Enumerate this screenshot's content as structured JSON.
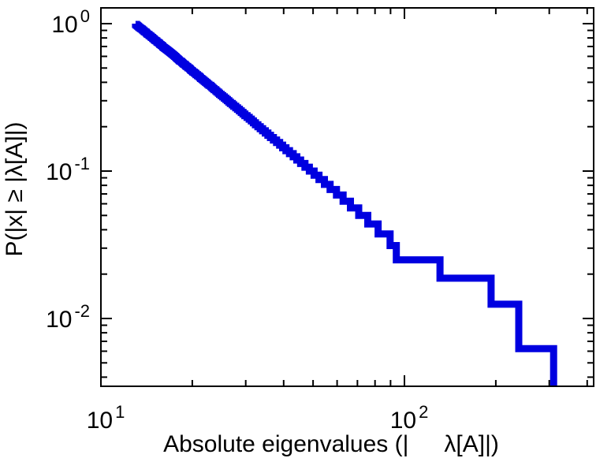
{
  "figure": {
    "background": "#ffffff",
    "frame_color": "#000000"
  },
  "chart_data": {
    "type": "line",
    "subtype": "empirical-ccdf-step",
    "title": "",
    "xlabel": "Absolute eigenvalues (|  λ[A]|)",
    "ylabel": "P(|x| ≥ |λ[A]|)",
    "x_scale": "log",
    "y_scale": "log",
    "xlim": [
      10,
      420
    ],
    "ylim": [
      0.0035,
      1.28
    ],
    "grid": false,
    "legend": "none",
    "line_color": "#0000e0",
    "line_width": 9,
    "n_samples": 160,
    "axes": {
      "x": {
        "major": [
          10,
          100
        ],
        "minor": [
          20,
          30,
          40,
          50,
          60,
          70,
          80,
          90,
          200,
          300,
          400
        ],
        "tick_labels": [
          {
            "base": "10",
            "exp": "1",
            "value": 10
          },
          {
            "base": "10",
            "exp": "2",
            "value": 100
          }
        ]
      },
      "y": {
        "major": [
          1,
          0.1,
          0.01
        ],
        "minor": [
          0.9,
          0.8,
          0.7,
          0.6,
          0.5,
          0.4,
          0.3,
          0.2,
          0.09,
          0.08,
          0.07,
          0.06,
          0.05,
          0.04,
          0.03,
          0.02,
          0.009,
          0.008,
          0.007,
          0.006,
          0.005,
          0.004
        ],
        "tick_labels": [
          {
            "base": "10",
            "exp": "0",
            "value": 1
          },
          {
            "base": "10",
            "exp": "-1",
            "value": 0.1
          },
          {
            "base": "10",
            "exp": "-2",
            "value": 0.01
          }
        ]
      }
    },
    "eigenvalues_desc": [
      310,
      238,
      193,
      131,
      94,
      89.7,
      81.9,
      75.7,
      70.7,
      66.4,
      62.8,
      59.7,
      56.9,
      54.5,
      52.3,
      50.4,
      48.6,
      47.0,
      45.5,
      44.2,
      43.0,
      41.8,
      40.7,
      39.7,
      38.8,
      37.9,
      37.0,
      36.2,
      35.5,
      34.8,
      34.1,
      33.5,
      32.9,
      32.3,
      31.8,
      31.3,
      30.8,
      30.3,
      29.8,
      29.4,
      29.0,
      28.6,
      28.2,
      27.8,
      27.4,
      27.1,
      26.7,
      26.4,
      26.1,
      25.8,
      25.5,
      25.2,
      24.9,
      24.6,
      24.4,
      24.1,
      23.9,
      23.6,
      23.4,
      23.2,
      23.0,
      22.7,
      22.5,
      22.3,
      22.1,
      21.9,
      21.7,
      21.5,
      21.3,
      21.2,
      21.0,
      20.8,
      20.6,
      20.5,
      20.3,
      20.1,
      20.0,
      19.8,
      19.7,
      19.6,
      19.4,
      19.3,
      19.1,
      19.0,
      18.9,
      18.7,
      18.6,
      18.5,
      18.4,
      18.2,
      18.1,
      18.0,
      17.9,
      17.8,
      17.7,
      17.6,
      17.5,
      17.4,
      17.3,
      17.2,
      17.1,
      17.0,
      16.9,
      16.8,
      16.7,
      16.6,
      16.5,
      16.4,
      16.3,
      16.2,
      16.1,
      16.0,
      16.0,
      15.9,
      15.8,
      15.7,
      15.6,
      15.6,
      15.5,
      15.4,
      15.3,
      15.3,
      15.2,
      15.1,
      15.0,
      15.0,
      14.9,
      14.8,
      14.8,
      14.7,
      14.6,
      14.6,
      14.5,
      14.4,
      14.4,
      14.3,
      14.2,
      14.2,
      14.1,
      14.1,
      14.0,
      13.9,
      13.9,
      13.8,
      13.8,
      13.7,
      13.7,
      13.6,
      13.5,
      13.5,
      13.4,
      13.4,
      13.3,
      13.3,
      13.2,
      13.2,
      13.1,
      13.1,
      13.0,
      13.0
    ]
  }
}
